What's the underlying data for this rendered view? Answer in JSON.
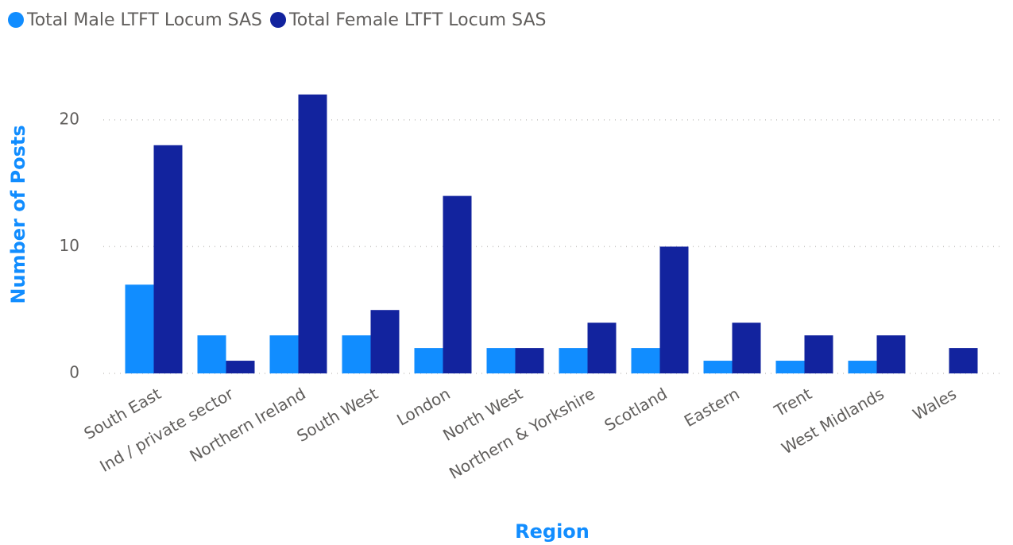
{
  "chart_data": {
    "type": "bar",
    "x_label": "Region",
    "y_label": "Number of Posts",
    "categories": [
      "South East",
      "Ind / private sector",
      "Northern Ireland",
      "South West",
      "London",
      "North West",
      "Northern & Yorkshire",
      "Scotland",
      "Eastern",
      "Trent",
      "West Midlands",
      "Wales"
    ],
    "series": [
      {
        "name": "Total Male LTFT Locum SAS",
        "color": "#118DFF",
        "values": [
          7,
          3,
          3,
          3,
          2,
          2,
          2,
          2,
          1,
          1,
          1,
          null
        ]
      },
      {
        "name": "Total Female LTFT Locum SAS",
        "color": "#12239E",
        "values": [
          18,
          1,
          22,
          5,
          14,
          2,
          4,
          10,
          4,
          3,
          3,
          2
        ]
      }
    ],
    "ylim": [
      0,
      23
    ],
    "yticks": [
      0,
      10,
      20
    ],
    "grid": true,
    "legend": "top-left"
  }
}
